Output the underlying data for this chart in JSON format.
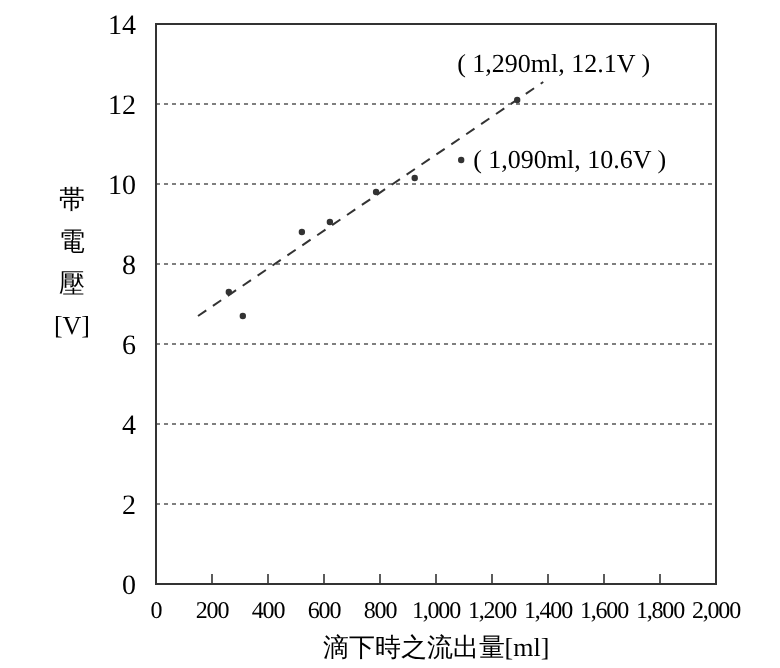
{
  "chart_data": {
    "type": "scatter",
    "xlabel": "滴下時之流出量[ml]",
    "ylabel": "帯電壓[V]",
    "xlim": [
      0,
      2000
    ],
    "ylim": [
      0,
      14
    ],
    "xticks": [
      0,
      200,
      400,
      600,
      800,
      {
        "value": 1000,
        "label": "1,000"
      },
      {
        "value": 1200,
        "label": "1,200"
      },
      {
        "value": 1400,
        "label": "1,400"
      },
      {
        "value": 1600,
        "label": "1,600"
      },
      {
        "value": 1800,
        "label": "1,800"
      },
      {
        "value": 2000,
        "label": "2,000"
      }
    ],
    "yticks": [
      0,
      2,
      4,
      6,
      8,
      10,
      12,
      14
    ],
    "grid": "y",
    "marker": "circle",
    "series": [
      {
        "type": "scatter",
        "color": "#333333",
        "x": [
          260,
          310,
          521,
          621,
          786,
          924,
          1090,
          1290
        ],
        "values": [
          7.3,
          6.7,
          8.8,
          9.05,
          9.8,
          10.15,
          10.6,
          12.1
        ]
      },
      {
        "type": "line",
        "color": "#333333",
        "line_style": "dashed",
        "marker": "none",
        "x": [
          150,
          1383
        ],
        "values": [
          6.7,
          12.55
        ]
      }
    ],
    "annotations": [
      {
        "text": "( 1,290ml, 12.1V )",
        "x": 1290,
        "y": 12.1
      },
      {
        "text": "( 1,090ml, 10.6V )",
        "x": 1090,
        "y": 10.6
      }
    ]
  }
}
